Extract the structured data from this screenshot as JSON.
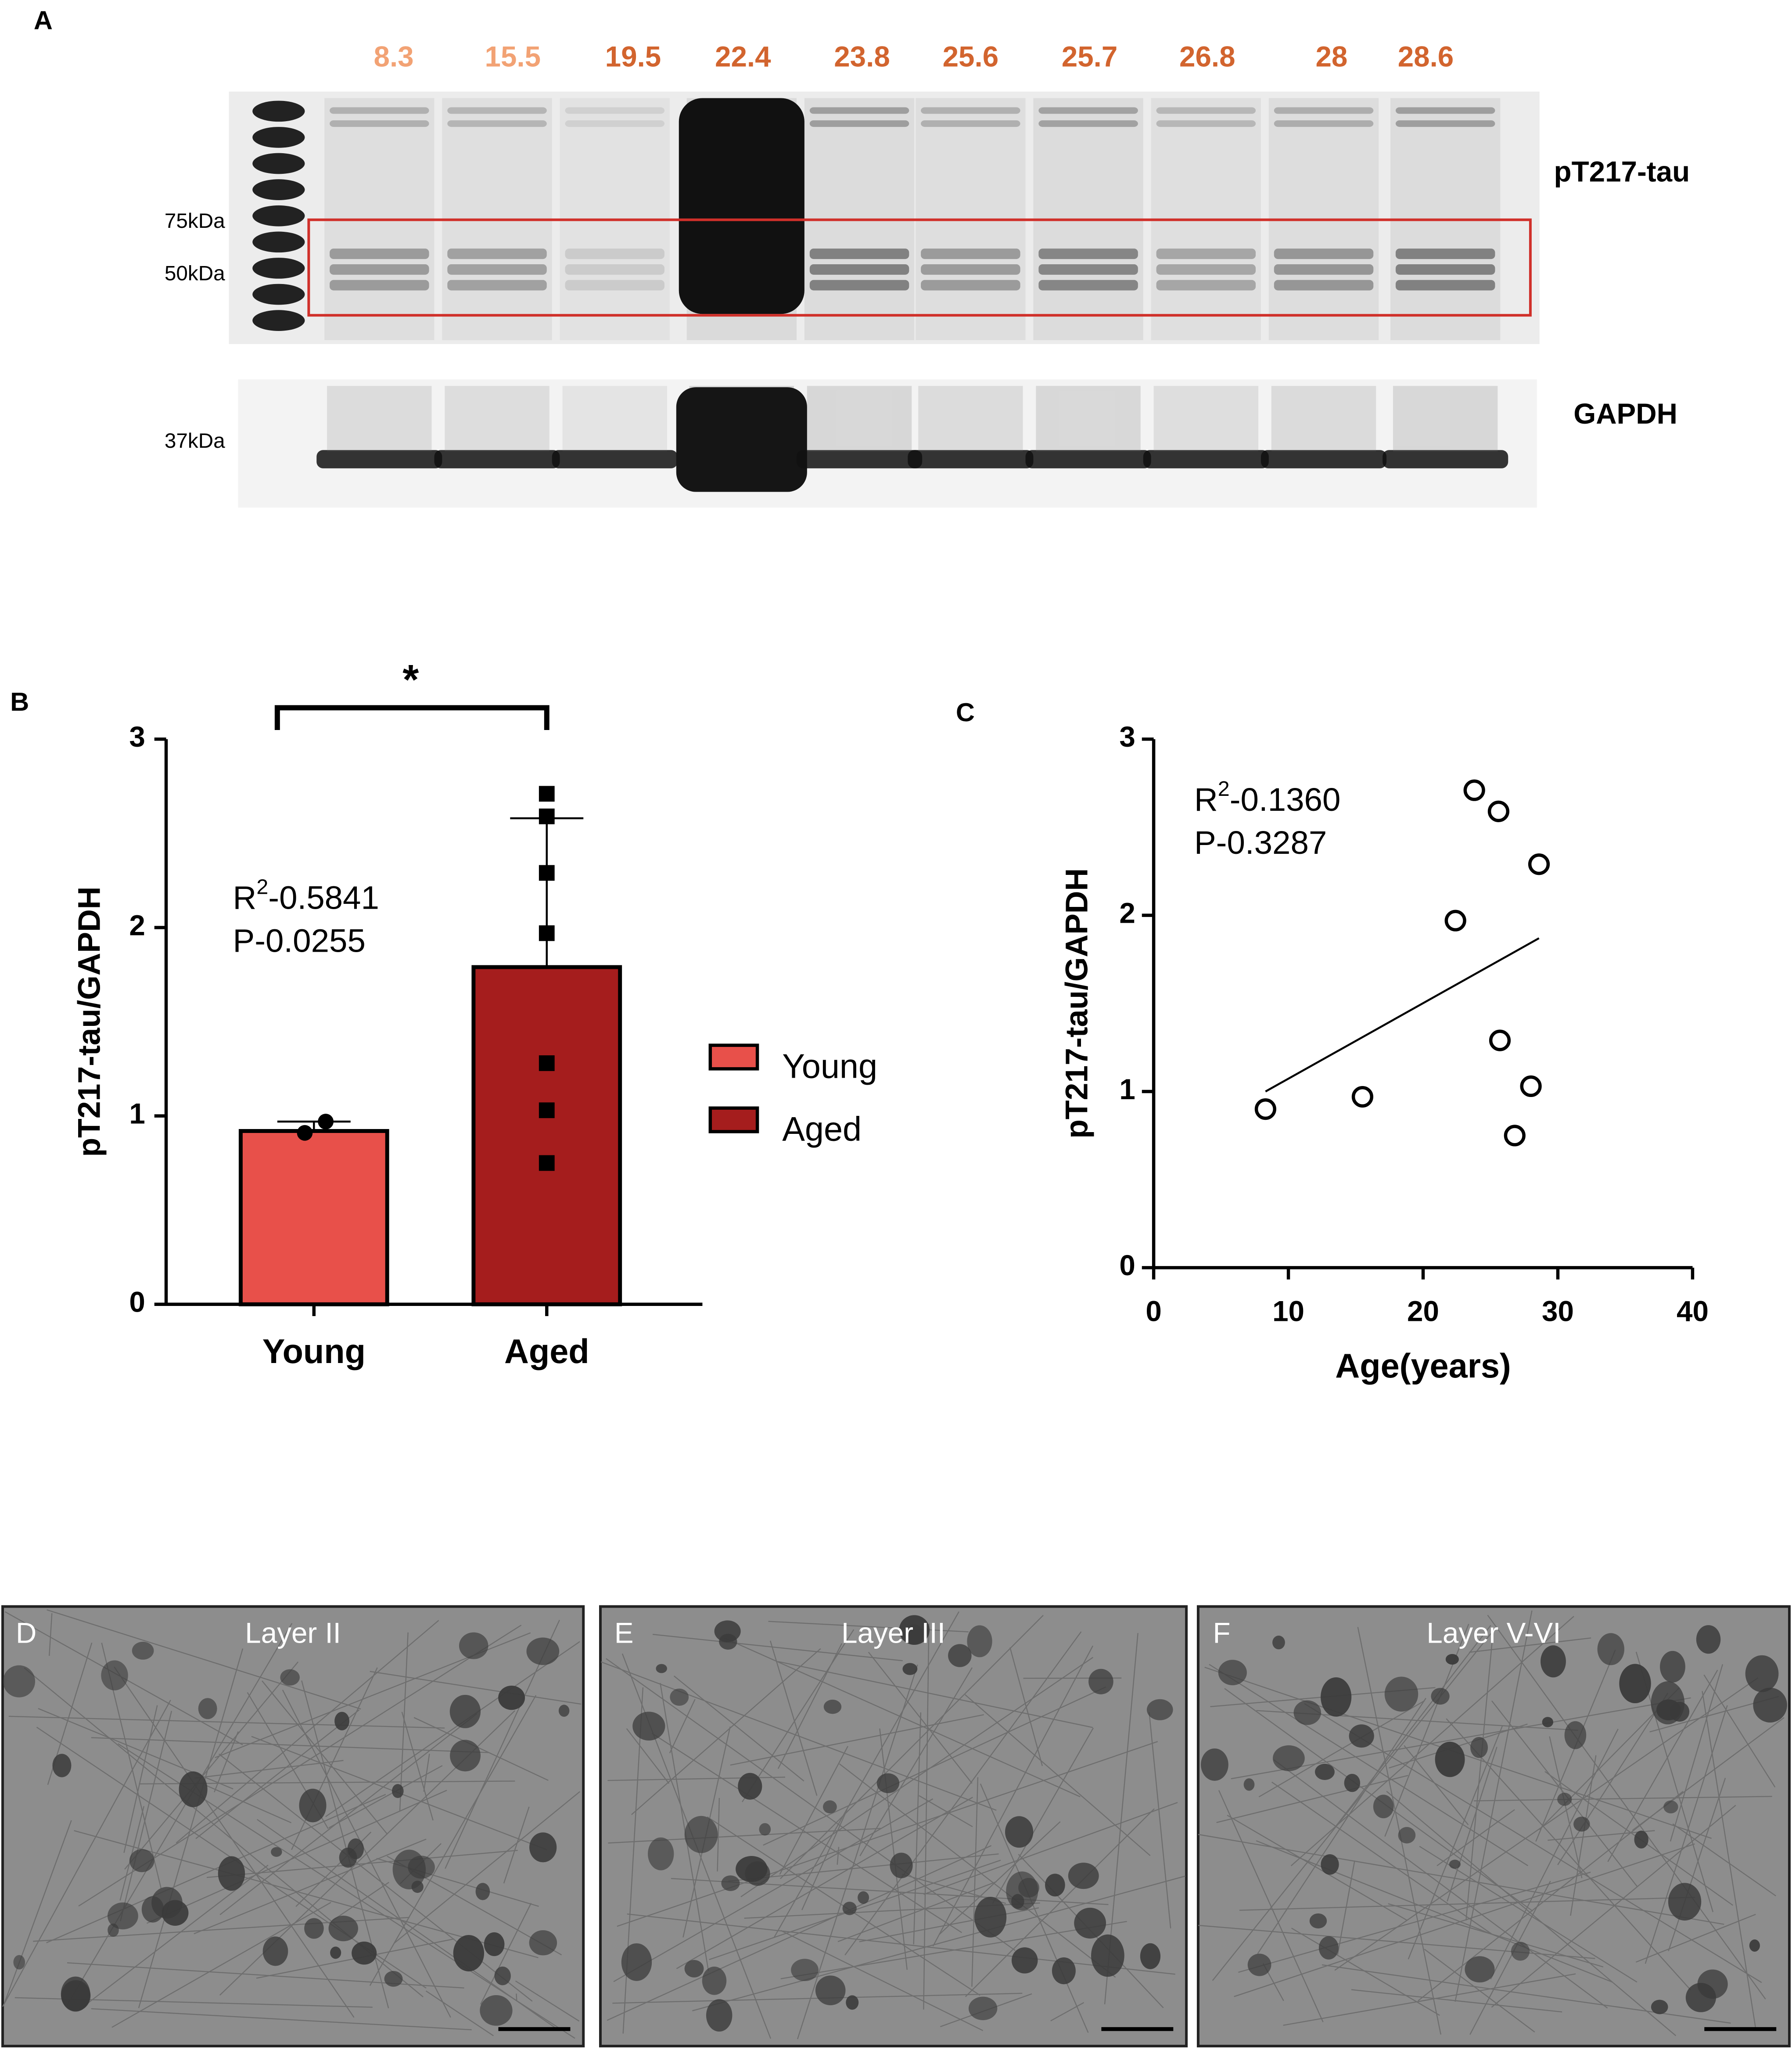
{
  "panel_labels": [
    "A",
    "B",
    "C",
    "D",
    "E",
    "F"
  ],
  "blot": {
    "lane_labels": [
      "8.3",
      "15.5",
      "19.5",
      "22.4",
      "23.8",
      "25.6",
      "25.7",
      "26.8",
      "28",
      "28.6"
    ],
    "lane_label_colors": [
      "#f2a274",
      "#f2a274",
      "#d2642e",
      "#d2642e",
      "#d2642e",
      "#d2642e",
      "#d2642e",
      "#d2642e",
      "#d2642e",
      "#d2642e"
    ],
    "top_label": "pT217-tau",
    "bottom_label": "GAPDH",
    "markers": [
      "75kDa",
      "50kDa",
      "37kDa"
    ]
  },
  "chart_data": [
    {
      "type": "bar",
      "categories": [
        "Young",
        "Aged"
      ],
      "values": [
        0.92,
        1.79
      ],
      "errors": [
        0.05,
        0.79
      ],
      "colors": [
        "#e8504a",
        "#a51d1d"
      ],
      "points": [
        [
          0.91,
          0.97
        ],
        [
          2.71,
          2.59,
          2.29,
          1.97,
          1.28,
          1.03,
          0.75
        ]
      ],
      "ylabel": "pT217-tau/GAPDH",
      "ylim": [
        0,
        3
      ],
      "yticks": [
        0,
        1,
        2,
        3
      ],
      "significance": "*",
      "annotation": [
        {
          "base": "R",
          "sup": "2",
          "text": "-0.5841"
        },
        "P-0.0255"
      ]
    },
    {
      "type": "scatter",
      "x": [
        8.3,
        15.5,
        22.4,
        23.8,
        25.6,
        25.7,
        26.8,
        28,
        28.6
      ],
      "values": [
        0.9,
        0.97,
        1.97,
        2.71,
        2.59,
        1.29,
        0.75,
        1.03,
        2.29
      ],
      "fit": {
        "x": [
          8.3,
          28.6
        ],
        "y": [
          1.0,
          1.87
        ]
      },
      "xlabel": "Age(years)",
      "ylabel": "pT217-tau/GAPDH",
      "xlim": [
        0,
        40
      ],
      "xticks": [
        0,
        10,
        20,
        30,
        40
      ],
      "ylim": [
        0,
        3
      ],
      "yticks": [
        0,
        1,
        2,
        3
      ],
      "annotation": [
        {
          "base": "R",
          "sup": "2",
          "text": "-0.1360"
        },
        "P-0.3287"
      ]
    }
  ],
  "micrographs": [
    "Layer II",
    "Layer III",
    "Layer V-VI"
  ]
}
